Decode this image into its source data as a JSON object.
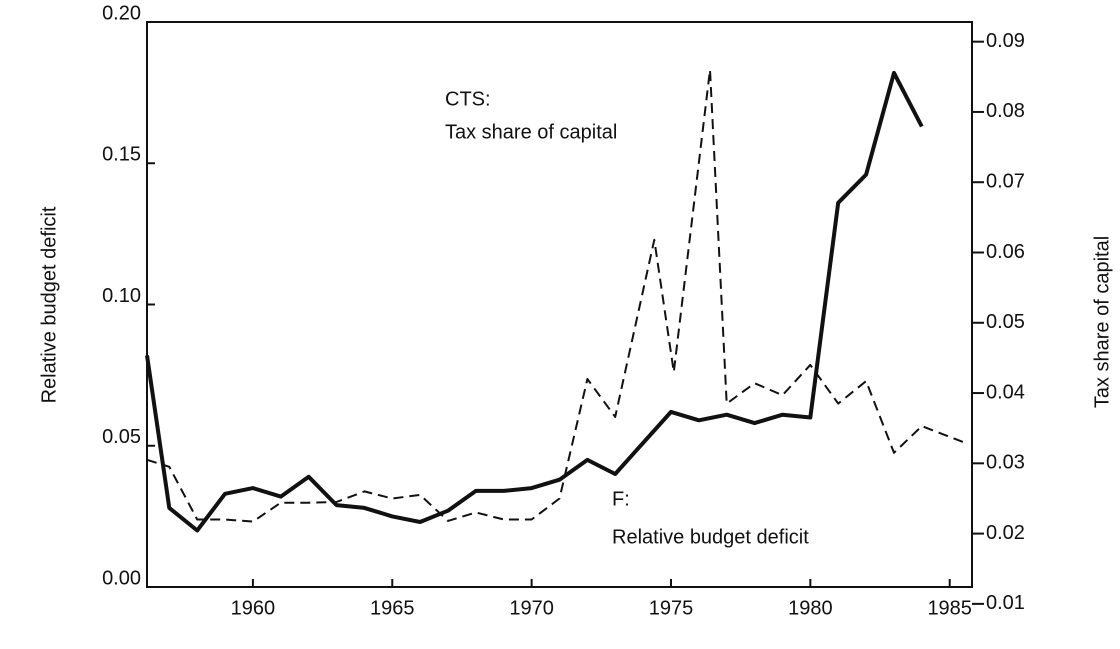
{
  "chart_data": {
    "type": "line",
    "ylabel": "Relative budget deficit",
    "y2label": "Tax share of capital",
    "xlim": [
      1956.2,
      1985.8
    ],
    "xticks": [
      1960,
      1965,
      1970,
      1975,
      1980,
      1985
    ],
    "ylim": [
      0,
      0.2
    ],
    "yticks": [
      {
        "value": 0,
        "label": "0.00"
      },
      {
        "value": 0.05,
        "label": "0.05"
      },
      {
        "value": 0.1,
        "label": "0.10"
      },
      {
        "value": 0.15,
        "label": "0.15"
      },
      {
        "value": 0.2,
        "label": "0.20"
      }
    ],
    "y2lim": [
      0.0124,
      0.0928
    ],
    "y2ticks": [
      0.01,
      0.02,
      0.03,
      0.04,
      0.05,
      0.06,
      0.07,
      0.08,
      0.09
    ],
    "series": [
      {
        "name": "F",
        "color": "#111111",
        "dash": false,
        "x": [
          1956.2,
          1957,
          1958,
          1959,
          1960,
          1961,
          1962,
          1963,
          1964,
          1965,
          1966,
          1967,
          1968,
          1969,
          1970,
          1971,
          1972,
          1973,
          1974,
          1975,
          1976,
          1977,
          1978,
          1979,
          1980,
          1981,
          1982,
          1983,
          1984
        ],
        "values": [
          0.082,
          0.028,
          0.02,
          0.033,
          0.035,
          0.032,
          0.039,
          0.029,
          0.028,
          0.025,
          0.023,
          0.027,
          0.034,
          0.034,
          0.035,
          0.038,
          0.045,
          0.04,
          0.051,
          0.062,
          0.059,
          0.061,
          0.058,
          0.061,
          0.06,
          0.136,
          0.146,
          0.182,
          0.163
        ]
      },
      {
        "name": "CTS",
        "color": "#111111",
        "dash": true,
        "axis": "y2",
        "x": [
          1956.2,
          1957,
          1958,
          1959,
          1960,
          1961,
          1962,
          1963,
          1964,
          1965,
          1966,
          1967,
          1968,
          1969,
          1970,
          1971,
          1972,
          1973,
          1974.4,
          1975.1,
          1976.4,
          1977,
          1978,
          1979,
          1980,
          1981,
          1982,
          1983,
          1984,
          1985.5
        ],
        "values": [
          0.0305,
          0.0295,
          0.022,
          0.022,
          0.0217,
          0.0244,
          0.0244,
          0.0245,
          0.026,
          0.025,
          0.0255,
          0.0218,
          0.023,
          0.022,
          0.022,
          0.025,
          0.042,
          0.0366,
          0.0618,
          0.043,
          0.086,
          0.0385,
          0.0414,
          0.0397,
          0.044,
          0.0385,
          0.0417,
          0.0315,
          0.0353,
          0.033
        ]
      }
    ],
    "annotations": [
      "CTS:",
      "Tax share of capital",
      "F:",
      "Relative budget deficit"
    ]
  }
}
